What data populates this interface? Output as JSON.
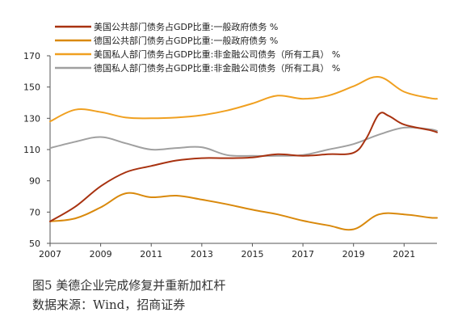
{
  "figure": {
    "title": "图5  美德企业完成修复并重新加杠杆",
    "source": "数据来源：Wind，招商证券"
  },
  "chart_data": {
    "type": "line",
    "title": "",
    "xlabel": "",
    "ylabel": "",
    "xlim": [
      2007,
      2022.3
    ],
    "ylim": [
      50,
      170
    ],
    "xticks": [
      2007,
      2009,
      2011,
      2013,
      2015,
      2017,
      2019,
      2021
    ],
    "yticks": [
      50,
      70,
      90,
      110,
      130,
      150,
      170
    ],
    "grid": false,
    "legend_position": "top-left",
    "series": [
      {
        "name": "美国公共部门债务占GDP比重:一般政府债务 %",
        "color": "#a83210",
        "points": [
          [
            2007,
            64
          ],
          [
            2008,
            73.5
          ],
          [
            2009,
            86.5
          ],
          [
            2010,
            95.5
          ],
          [
            2011,
            99.5
          ],
          [
            2012,
            103
          ],
          [
            2013,
            104.5
          ],
          [
            2014,
            104.5
          ],
          [
            2015,
            105
          ],
          [
            2016,
            107
          ],
          [
            2017,
            106
          ],
          [
            2018,
            107
          ],
          [
            2019,
            108
          ],
          [
            2019.5,
            117
          ],
          [
            2020,
            132.5
          ],
          [
            2020.4,
            131.5
          ],
          [
            2021,
            126
          ],
          [
            2022,
            122.5
          ],
          [
            2022.3,
            121
          ]
        ]
      },
      {
        "name": "德国公共部门债务占GDP比重:一般政府债务 %",
        "color": "#d9890c",
        "points": [
          [
            2007,
            64
          ],
          [
            2008,
            66
          ],
          [
            2009,
            73
          ],
          [
            2010,
            82
          ],
          [
            2011,
            79.5
          ],
          [
            2012,
            80.5
          ],
          [
            2013,
            78
          ],
          [
            2014,
            75
          ],
          [
            2015,
            71.5
          ],
          [
            2016,
            68.5
          ],
          [
            2017,
            64.5
          ],
          [
            2018,
            61.5
          ],
          [
            2019,
            59
          ],
          [
            2020,
            68.5
          ],
          [
            2021,
            68.5
          ],
          [
            2022,
            66.5
          ],
          [
            2022.3,
            66.3
          ]
        ]
      },
      {
        "name": "美国私人部门债务占GDP比重:非金融公司债务（所有工具） %",
        "color": "#f0a020",
        "points": [
          [
            2007,
            128
          ],
          [
            2008,
            135.5
          ],
          [
            2009,
            134
          ],
          [
            2010,
            130.5
          ],
          [
            2011,
            130
          ],
          [
            2012,
            130.5
          ],
          [
            2013,
            132
          ],
          [
            2014,
            135
          ],
          [
            2015,
            139.5
          ],
          [
            2016,
            144.5
          ],
          [
            2017,
            142.5
          ],
          [
            2018,
            144.5
          ],
          [
            2019,
            150.5
          ],
          [
            2020,
            156.5
          ],
          [
            2021,
            147
          ],
          [
            2022,
            143
          ],
          [
            2022.3,
            142.5
          ]
        ]
      },
      {
        "name": "德国私人部门债务占GDP比重:非金融公司债务（所有工具） %",
        "color": "#a0a0a0",
        "points": [
          [
            2007,
            111
          ],
          [
            2008,
            115
          ],
          [
            2009,
            118
          ],
          [
            2010,
            114
          ],
          [
            2011,
            110
          ],
          [
            2012,
            111
          ],
          [
            2013,
            111.5
          ],
          [
            2014,
            106.5
          ],
          [
            2015,
            106
          ],
          [
            2016,
            106
          ],
          [
            2017,
            106.5
          ],
          [
            2018,
            110
          ],
          [
            2019,
            113.5
          ],
          [
            2020,
            119.5
          ],
          [
            2021,
            124
          ],
          [
            2022,
            123
          ],
          [
            2022.3,
            122
          ]
        ]
      }
    ]
  }
}
